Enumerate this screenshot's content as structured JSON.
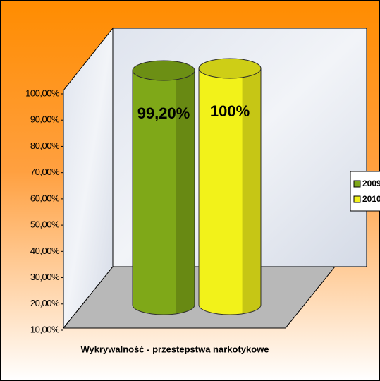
{
  "chart_data": {
    "type": "bar",
    "categories": [
      "Wykrywalność - przestepstwa narkotykowe"
    ],
    "series": [
      {
        "name": "2009",
        "color": "#7fa818",
        "values": [
          99.2
        ],
        "value_labels": [
          "99,20%"
        ]
      },
      {
        "name": "2010",
        "color": "#f2f21a",
        "values": [
          100
        ],
        "value_labels": [
          "100%"
        ]
      }
    ],
    "ylim": [
      10,
      100
    ],
    "yticks": [
      {
        "value": 10,
        "label": "10,00%"
      },
      {
        "value": 20,
        "label": "20,00%"
      },
      {
        "value": 30,
        "label": "30,00%"
      },
      {
        "value": 40,
        "label": "40,00%"
      },
      {
        "value": 50,
        "label": "50,00%"
      },
      {
        "value": 60,
        "label": "60,00%"
      },
      {
        "value": 70,
        "label": "70,00%"
      },
      {
        "value": 80,
        "label": "80,00%"
      },
      {
        "value": 90,
        "label": "90,00%"
      },
      {
        "value": 100,
        "label": "100,00%"
      }
    ],
    "legend": "right"
  }
}
